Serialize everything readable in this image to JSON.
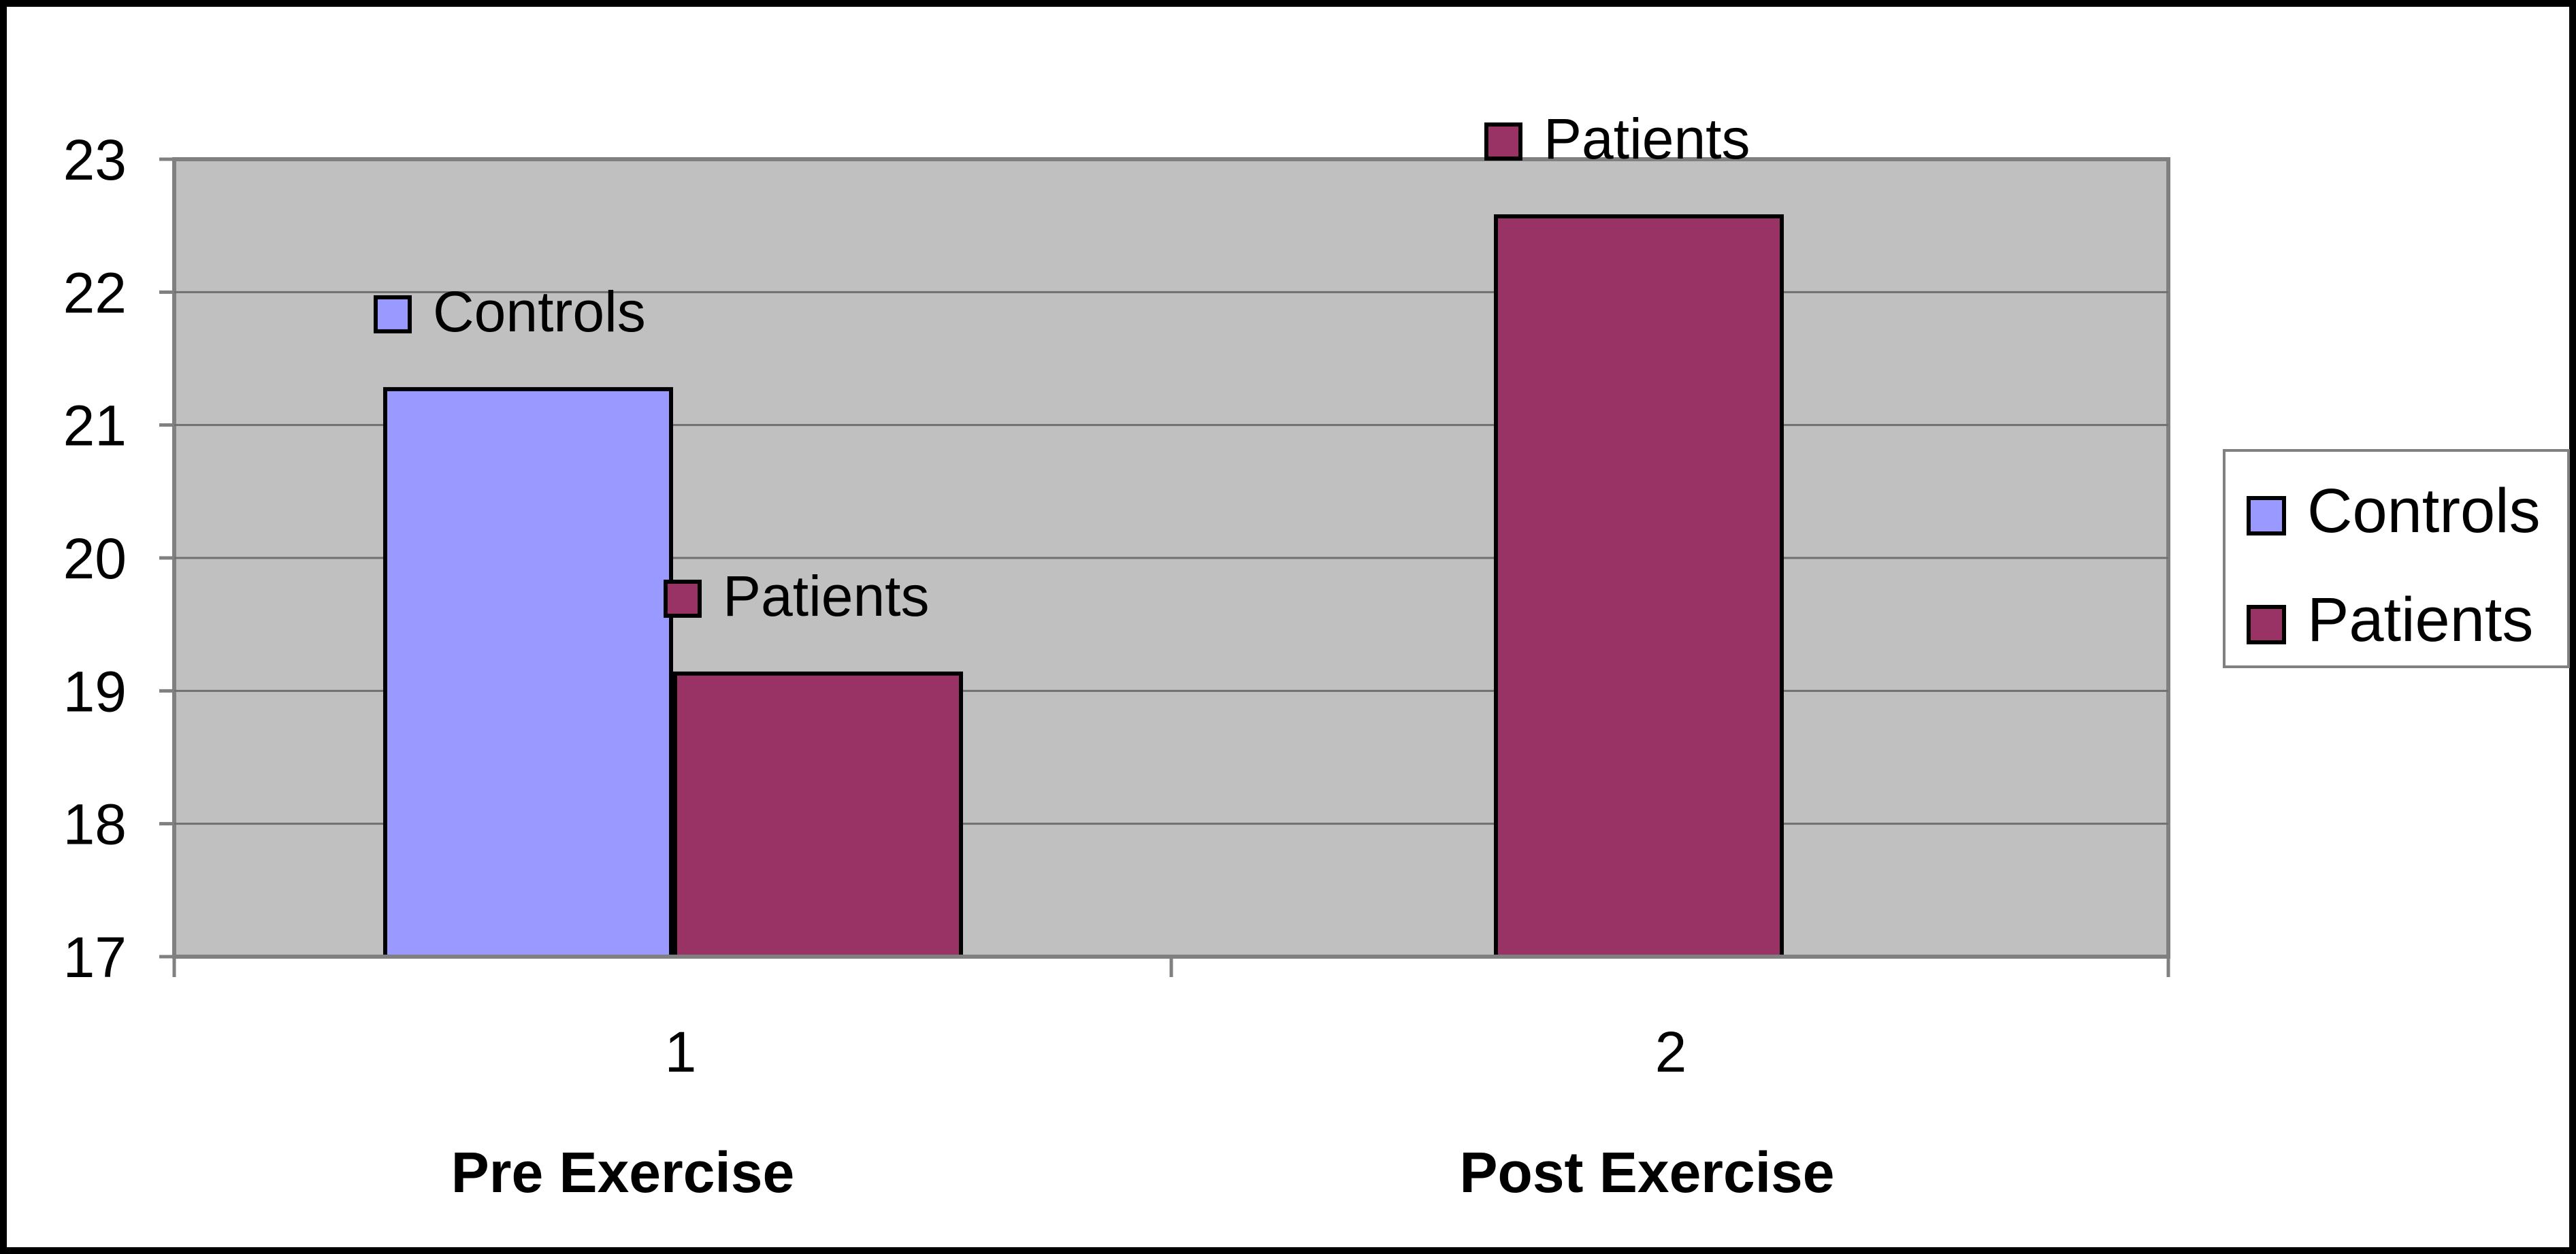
{
  "chart_data": {
    "type": "bar",
    "title": "",
    "xlabel": "",
    "ylabel": "",
    "ylim": [
      17,
      23
    ],
    "yticks": [
      "17",
      "18",
      "19",
      "20",
      "21",
      "22",
      "23"
    ],
    "grid": true,
    "legend_position": "right",
    "categories": [
      "1",
      "2"
    ],
    "group_labels": [
      "Pre Exercise",
      "Post Exercise"
    ],
    "series": [
      {
        "name": "Controls",
        "color": "#9999ff",
        "values": [
          21.27,
          null
        ]
      },
      {
        "name": "Patients",
        "color": "#993366",
        "values": [
          19.13,
          22.57
        ]
      }
    ],
    "plot_background": "#c0c0c0"
  }
}
